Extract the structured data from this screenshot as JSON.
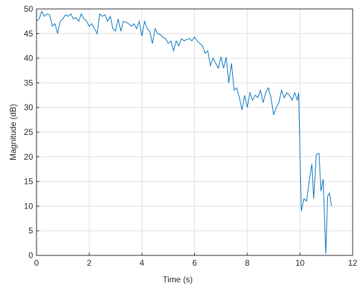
{
  "chart_data": {
    "type": "line",
    "xlabel": "Time (s)",
    "ylabel": "Magnitude (dB)",
    "xlim": [
      0,
      12
    ],
    "xticks": [
      0,
      2,
      4,
      6,
      8,
      10,
      12
    ],
    "ylim": [
      0,
      50
    ],
    "yticks": [
      0,
      5,
      10,
      15,
      20,
      25,
      30,
      35,
      40,
      45,
      50
    ],
    "grid": true,
    "series": [
      {
        "color": "#0072bd",
        "x": [
          0.0,
          0.1,
          0.2,
          0.3,
          0.4,
          0.5,
          0.6,
          0.7,
          0.8,
          0.9,
          1.0,
          1.1,
          1.2,
          1.3,
          1.4,
          1.5,
          1.6,
          1.7,
          1.8,
          1.9,
          2.0,
          2.1,
          2.2,
          2.3,
          2.4,
          2.5,
          2.6,
          2.7,
          2.8,
          2.9,
          3.0,
          3.1,
          3.2,
          3.3,
          3.4,
          3.5,
          3.6,
          3.7,
          3.8,
          3.9,
          4.0,
          4.1,
          4.2,
          4.3,
          4.4,
          4.5,
          4.6,
          4.7,
          4.8,
          4.9,
          5.0,
          5.1,
          5.2,
          5.3,
          5.4,
          5.5,
          5.6,
          5.7,
          5.8,
          5.9,
          6.0,
          6.1,
          6.2,
          6.3,
          6.4,
          6.5,
          6.6,
          6.7,
          6.8,
          6.9,
          7.0,
          7.1,
          7.2,
          7.3,
          7.4,
          7.5,
          7.6,
          7.7,
          7.8,
          7.9,
          8.0,
          8.1,
          8.2,
          8.3,
          8.4,
          8.5,
          8.6,
          8.7,
          8.8,
          8.9,
          9.0,
          9.1,
          9.2,
          9.3,
          9.4,
          9.5,
          9.6,
          9.7,
          9.8,
          9.9,
          9.95,
          10.05,
          10.15,
          10.25,
          10.35,
          10.45,
          10.52,
          10.62,
          10.72,
          10.8,
          10.88,
          10.98,
          11.05,
          11.12,
          11.2
        ],
        "values": [
          47.5,
          48,
          49.5,
          48.5,
          49,
          48.8,
          46.5,
          47,
          45,
          47.5,
          48,
          48.8,
          48.5,
          49,
          48,
          48.2,
          47.5,
          49,
          48,
          47.5,
          46.5,
          47,
          46,
          45,
          49,
          48.5,
          48.8,
          47.5,
          48.5,
          46,
          45.5,
          48,
          45.5,
          47.5,
          47.3,
          47,
          46.5,
          47,
          46,
          47.5,
          44.5,
          47.5,
          46,
          45.5,
          43,
          46,
          45,
          44.8,
          44.2,
          44,
          43,
          43.5,
          41.5,
          43.5,
          42.5,
          44,
          43.5,
          43.8,
          44,
          43.5,
          44.3,
          43.5,
          43,
          42.5,
          41,
          41.5,
          38.5,
          40,
          39,
          38,
          40.3,
          38,
          40.2,
          35,
          39,
          33.5,
          34,
          32,
          29.5,
          32.5,
          30,
          33,
          31.5,
          32.5,
          32,
          33.5,
          31,
          33,
          34,
          32,
          28.5,
          30,
          31,
          33.5,
          32,
          33,
          32.5,
          31.5,
          33,
          31.5,
          33,
          9,
          11.5,
          11,
          15,
          18.5,
          11.5,
          20.5,
          20.7,
          13,
          15.5,
          0.3,
          12,
          12.6,
          10
        ]
      }
    ]
  }
}
